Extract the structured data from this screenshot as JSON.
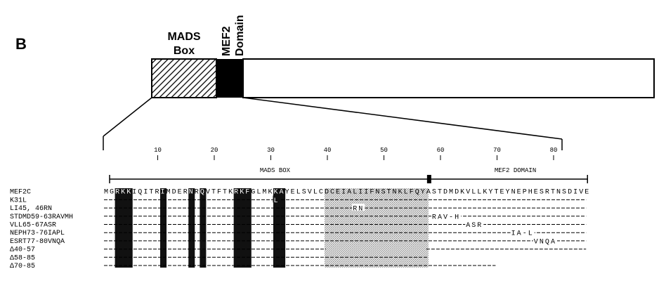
{
  "figure": {
    "panel_letter": "B",
    "mads_box_label_1": "MADS",
    "mads_box_label_2": "Box",
    "mef2_label_1": "MEF2",
    "mef2_label_2": "Domain"
  },
  "ruler": {
    "ticks": [
      "10",
      "20",
      "30",
      "40",
      "50",
      "60",
      "70",
      "80"
    ],
    "mads_box_label": "MADS BOX",
    "mef2_domain_label": "MEF2 DOMAIN"
  },
  "alignment": {
    "wild_type_name": "MEF2C",
    "wild_type_sequence": "MGRKKIQITRIMDERNRQVTFTKRKFGLMKKAYELSVLCDCEIALIIFNSTNKLFQYASTDMDKVLLKYTEYNEPHESRTNSDIVE",
    "mutants": [
      {
        "name": "K31L",
        "annotation": "L"
      },
      {
        "name": "LI45, 46RN",
        "annotation": "RN"
      },
      {
        "name": "STDMD59-63RAVMH",
        "annotation": "RAV-H"
      },
      {
        "name": "VLL65-67ASR",
        "annotation": "ASR"
      },
      {
        "name": "NEPH73-76IAPL",
        "annotation": "IA-L"
      },
      {
        "name": "ESRT77-80VNQA",
        "annotation": "VNQA"
      },
      {
        "name": "Δ40-57",
        "annotation": ""
      },
      {
        "name": "Δ58-85",
        "annotation": ""
      },
      {
        "name": "Δ70-85",
        "annotation": ""
      }
    ]
  },
  "colors": {
    "ink": "#000000",
    "paper": "#ffffff",
    "shade": "#cfcfcf",
    "box_highlight": "#111111"
  }
}
